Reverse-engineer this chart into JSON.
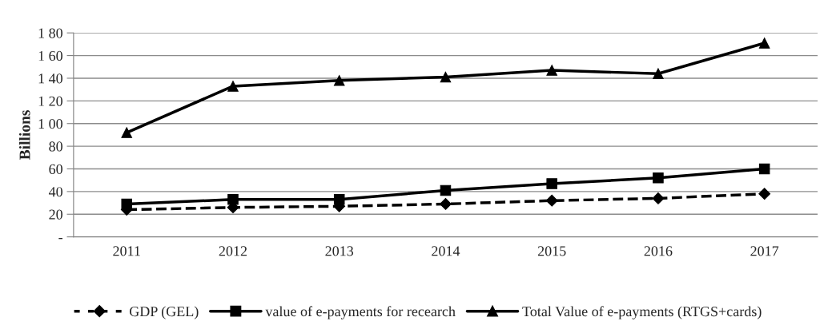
{
  "chart_data": {
    "type": "line",
    "ylabel": "Billions",
    "categories": [
      "2011",
      "2012",
      "2013",
      "2014",
      "2015",
      "2016",
      "2017"
    ],
    "series": [
      {
        "name": "GDP (GEL)",
        "color": "#000000",
        "marker": "diamond",
        "line_style": "dashed",
        "values": [
          24,
          26,
          27,
          29,
          32,
          34,
          38
        ]
      },
      {
        "name": "value of e-payments for recearch",
        "color": "#000000",
        "marker": "square",
        "line_style": "solid",
        "values": [
          29,
          33,
          33,
          41,
          47,
          52,
          60
        ]
      },
      {
        "name": "Total Value of e-payments (RTGS+cards)",
        "color": "#000000",
        "marker": "triangle",
        "line_style": "solid",
        "values": [
          92,
          133,
          138,
          141,
          147,
          144,
          171
        ]
      }
    ],
    "ylim": [
      0,
      180
    ],
    "yticks": [
      {
        "value": 0,
        "label": "-"
      },
      20,
      40,
      60,
      80,
      {
        "value": 100,
        "label": "1 00"
      },
      {
        "value": 120,
        "label": "1 20"
      },
      {
        "value": 140,
        "label": "1 40"
      },
      {
        "value": 160,
        "label": "1 60"
      },
      {
        "value": 180,
        "label": "1 80"
      }
    ],
    "grid": "y",
    "legend": "bottom"
  }
}
